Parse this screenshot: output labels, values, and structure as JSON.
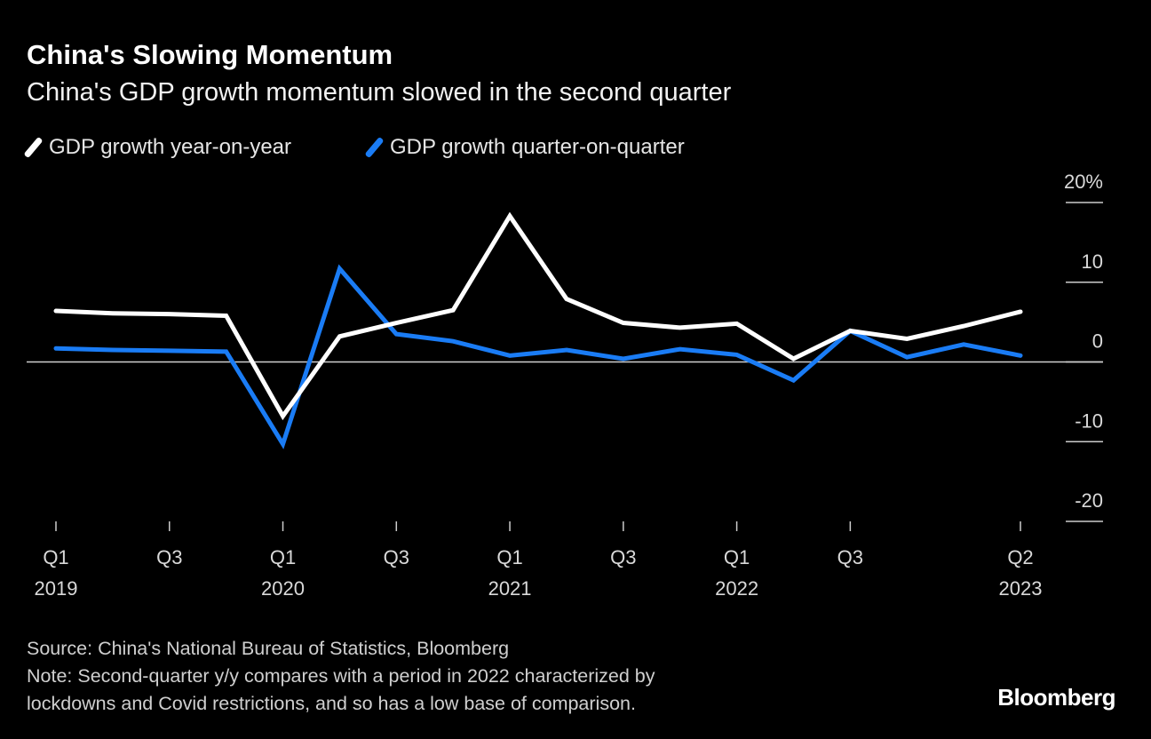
{
  "title": "China's Slowing Momentum",
  "subtitle": "China's GDP growth momentum slowed in the second quarter",
  "legend": [
    {
      "label": "GDP growth year-on-year",
      "color": "#ffffff"
    },
    {
      "label": "GDP growth quarter-on-quarter",
      "color": "#1a7cf5"
    }
  ],
  "footer": {
    "source": "Source: China's National Bureau of Statistics, Bloomberg",
    "note_line1": "Note: Second-quarter y/y compares with a period in 2022 characterized by",
    "note_line2": "lockdowns and Covid restrictions, and so has a low base of comparison.",
    "brand": "Bloomberg"
  },
  "chart_data": {
    "type": "line",
    "title": "China's Slowing Momentum",
    "subtitle": "China's GDP growth momentum slowed in the second quarter",
    "x": [
      "Q1 2019",
      "Q2 2019",
      "Q3 2019",
      "Q4 2019",
      "Q1 2020",
      "Q2 2020",
      "Q3 2020",
      "Q4 2020",
      "Q1 2021",
      "Q2 2021",
      "Q3 2021",
      "Q4 2021",
      "Q1 2022",
      "Q2 2022",
      "Q3 2022",
      "Q4 2022",
      "Q1 2023",
      "Q2 2023"
    ],
    "x_ticks": [
      {
        "index": 0,
        "q": "Q1",
        "year": "2019"
      },
      {
        "index": 2,
        "q": "Q3",
        "year": ""
      },
      {
        "index": 4,
        "q": "Q1",
        "year": "2020"
      },
      {
        "index": 6,
        "q": "Q3",
        "year": ""
      },
      {
        "index": 8,
        "q": "Q1",
        "year": "2021"
      },
      {
        "index": 10,
        "q": "Q3",
        "year": ""
      },
      {
        "index": 12,
        "q": "Q1",
        "year": "2022"
      },
      {
        "index": 14,
        "q": "Q3",
        "year": ""
      },
      {
        "index": 17,
        "q": "Q2",
        "year": "2023"
      }
    ],
    "series": [
      {
        "name": "GDP growth year-on-year",
        "color": "#ffffff",
        "values": [
          6.4,
          6.1,
          6.0,
          5.8,
          -6.8,
          3.2,
          4.9,
          6.5,
          18.3,
          7.9,
          4.9,
          4.3,
          4.8,
          0.4,
          3.9,
          2.9,
          4.5,
          6.3
        ]
      },
      {
        "name": "GDP growth quarter-on-quarter",
        "color": "#1a7cf5",
        "values": [
          1.7,
          1.5,
          1.4,
          1.3,
          -10.3,
          11.7,
          3.5,
          2.6,
          0.8,
          1.5,
          0.4,
          1.6,
          0.9,
          -2.3,
          3.9,
          0.6,
          2.2,
          0.8
        ]
      }
    ],
    "y_ticks": [
      "20%",
      "10",
      "0",
      "-10",
      "-20"
    ],
    "y_tick_values": [
      20,
      10,
      0,
      -10,
      -20
    ],
    "ylim": [
      -20,
      20
    ],
    "y_axis_side": "right",
    "grid": false,
    "zero_line": true,
    "legend_position": "top-left"
  }
}
